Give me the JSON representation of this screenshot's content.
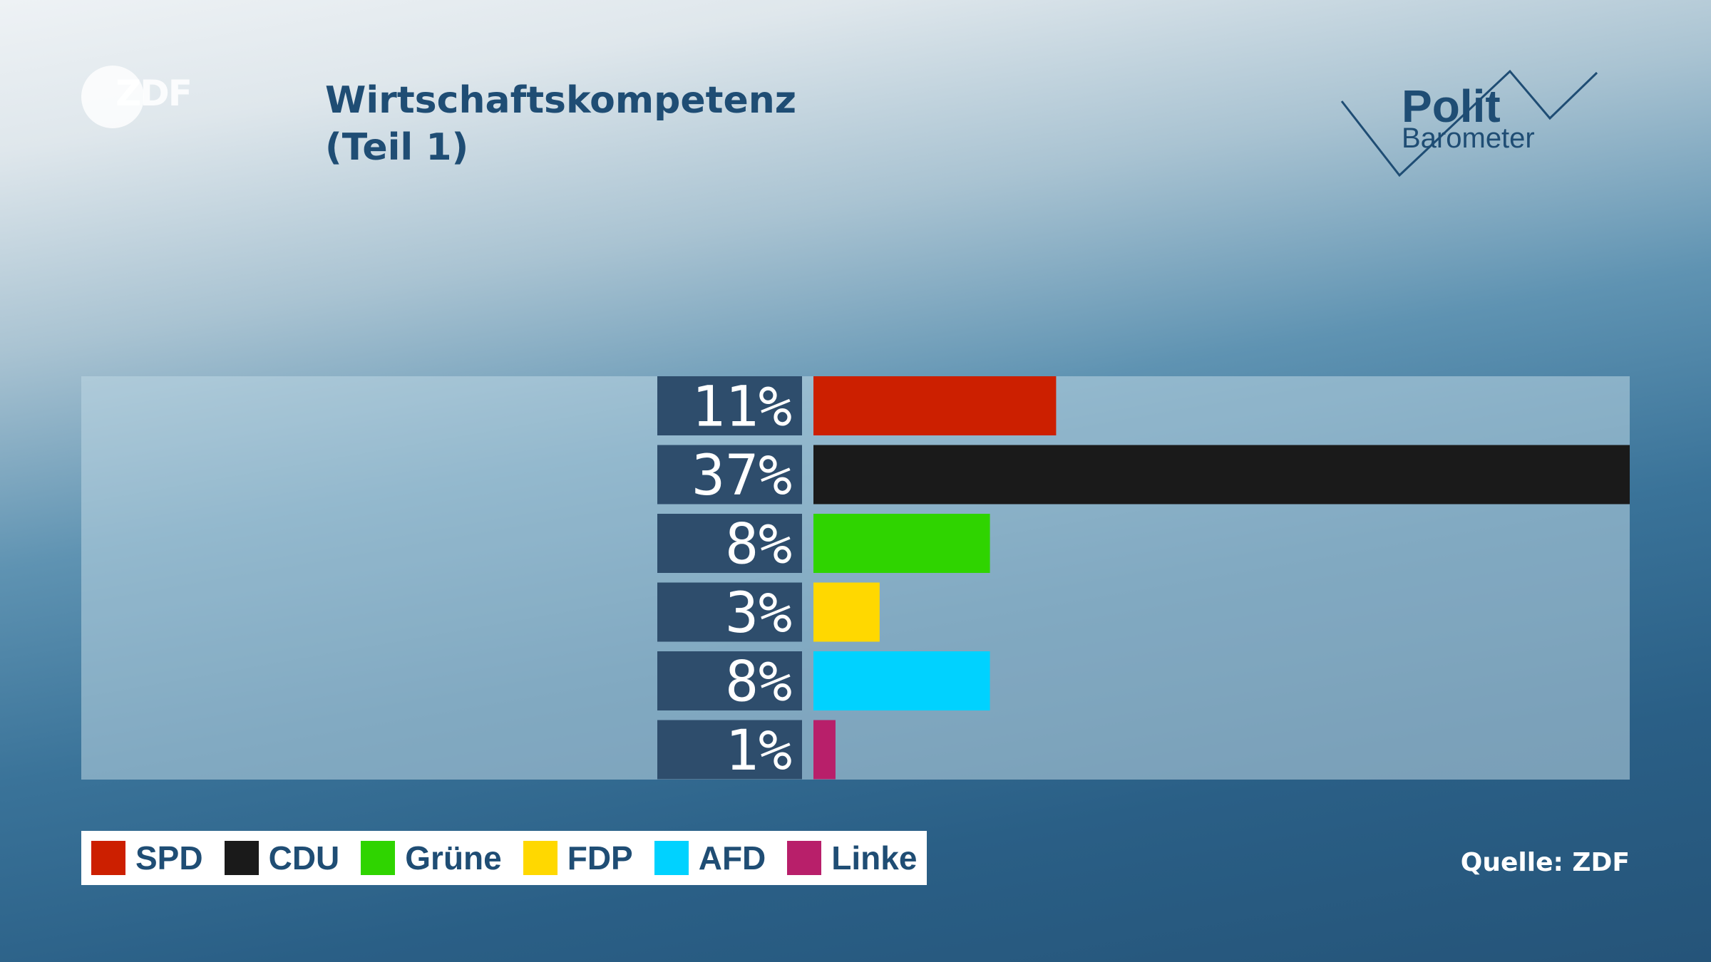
{
  "branding": {
    "channel_logo": "ZDF",
    "show_logo_top": "Polit",
    "show_logo_bottom": "Barometer"
  },
  "title_line1": "Wirtschaftskompetenz",
  "title_line2": "(Teil 1)",
  "source": "Quelle: ZDF",
  "chart_data": {
    "type": "bar",
    "orientation": "horizontal",
    "categories": [
      "SPD",
      "CDU",
      "Grüne",
      "FDP",
      "AFD",
      "Linke"
    ],
    "values": [
      11,
      37,
      8,
      3,
      8,
      1
    ],
    "value_labels": [
      "11%",
      "37%",
      "8%",
      "3%",
      "8%",
      "1%"
    ],
    "colors": [
      "#cc1f00",
      "#1a1a1a",
      "#2fd400",
      "#ffd800",
      "#00d2ff",
      "#b81f6a"
    ],
    "xlim": [
      0,
      37
    ],
    "legend_position": "bottom-left",
    "grid": false
  }
}
